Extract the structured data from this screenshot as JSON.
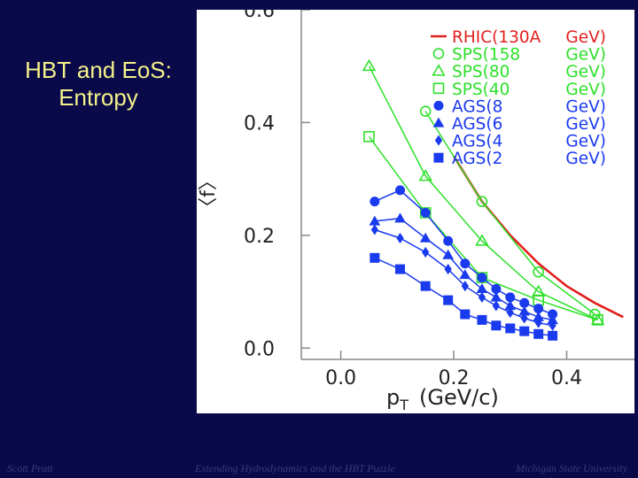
{
  "slide": {
    "title_line1": "HBT and EoS:",
    "title_line2": "Entropy",
    "footer_left": "Scott Pratt",
    "footer_center": "Extending Hydrodynamics and the HBT Puzzle",
    "footer_right": "Michigan State University"
  },
  "colors": {
    "background": "#0a0a4a",
    "title": "#f4f28a",
    "rhic": "#e0201e",
    "sps": "#2ee02a",
    "ags": "#1a3aee",
    "axes": "#888888"
  },
  "chart_data": {
    "type": "line",
    "xlabel": "p",
    "xlabel_sub": "T",
    "xlabel_unit": "(GeV/c)",
    "ylabel": "〈f〉",
    "xlim": [
      -0.07,
      0.52
    ],
    "ylim": [
      -0.02,
      0.6
    ],
    "xticks": [
      0.0,
      0.2,
      0.4
    ],
    "xtick_labels": [
      "0.0",
      "0.2",
      "0.4"
    ],
    "yticks": [
      0.0,
      0.2,
      0.4,
      0.6
    ],
    "ytick_labels": [
      "0.0",
      "0.2",
      "0.4",
      "0.6"
    ],
    "legend_position": "top-right",
    "series": [
      {
        "name": "RHIC(130A",
        "energy": "GeV)",
        "marker": "line",
        "color": "#e0201e",
        "x": [
          0.2,
          0.25,
          0.3,
          0.35,
          0.4,
          0.45,
          0.5
        ],
        "y": [
          0.34,
          0.26,
          0.2,
          0.15,
          0.11,
          0.08,
          0.055
        ]
      },
      {
        "name": "SPS(158",
        "energy": "GeV)",
        "marker": "circle-open",
        "color": "#2ee02a",
        "x": [
          0.15,
          0.25,
          0.35,
          0.45
        ],
        "y": [
          0.42,
          0.26,
          0.135,
          0.06
        ]
      },
      {
        "name": "SPS(80",
        "energy": "GeV)",
        "marker": "triangle-open",
        "color": "#2ee02a",
        "x": [
          0.05,
          0.15,
          0.25,
          0.35,
          0.455
        ],
        "y": [
          0.5,
          0.305,
          0.19,
          0.1,
          0.05
        ]
      },
      {
        "name": "SPS(40",
        "energy": "GeV)",
        "marker": "square-open",
        "color": "#2ee02a",
        "x": [
          0.05,
          0.15,
          0.25,
          0.35,
          0.455
        ],
        "y": [
          0.375,
          0.24,
          0.125,
          0.085,
          0.05
        ]
      },
      {
        "name": "AGS(8",
        "energy": "GeV)",
        "marker": "circle",
        "color": "#1a3aee",
        "x": [
          0.06,
          0.105,
          0.15,
          0.19,
          0.22,
          0.25,
          0.275,
          0.3,
          0.325,
          0.35,
          0.375
        ],
        "y": [
          0.26,
          0.28,
          0.24,
          0.19,
          0.15,
          0.125,
          0.105,
          0.09,
          0.08,
          0.07,
          0.06
        ]
      },
      {
        "name": "AGS(6",
        "energy": "GeV)",
        "marker": "triangle",
        "color": "#1a3aee",
        "x": [
          0.06,
          0.105,
          0.15,
          0.19,
          0.22,
          0.25,
          0.275,
          0.3,
          0.325,
          0.35,
          0.375
        ],
        "y": [
          0.225,
          0.23,
          0.195,
          0.165,
          0.13,
          0.105,
          0.09,
          0.075,
          0.065,
          0.055,
          0.05
        ]
      },
      {
        "name": "AGS(4",
        "energy": "GeV)",
        "marker": "diamond",
        "color": "#1a3aee",
        "x": [
          0.06,
          0.105,
          0.15,
          0.19,
          0.22,
          0.25,
          0.275,
          0.3,
          0.325,
          0.35,
          0.375
        ],
        "y": [
          0.21,
          0.195,
          0.17,
          0.14,
          0.11,
          0.09,
          0.075,
          0.063,
          0.053,
          0.045,
          0.04
        ]
      },
      {
        "name": "AGS(2",
        "energy": "GeV)",
        "marker": "square",
        "color": "#1a3aee",
        "x": [
          0.06,
          0.105,
          0.15,
          0.19,
          0.22,
          0.25,
          0.275,
          0.3,
          0.325,
          0.35,
          0.375
        ],
        "y": [
          0.16,
          0.14,
          0.11,
          0.085,
          0.06,
          0.05,
          0.04,
          0.035,
          0.03,
          0.025,
          0.022
        ]
      }
    ]
  }
}
